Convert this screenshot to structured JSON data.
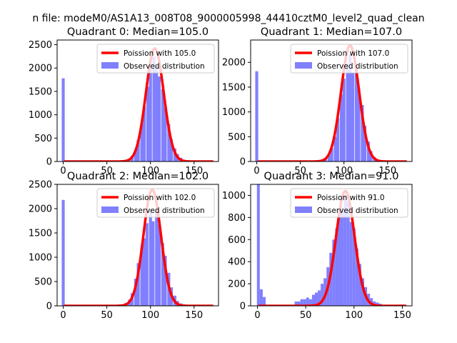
{
  "figure": {
    "suptitle": "n file: modeM0/AS1A13_008T08_9000005998_44410cztM0_level2_quad_clean"
  },
  "style": {
    "bar_color": "#8080ff",
    "line_color": "#ff0000"
  },
  "chart_data": [
    {
      "type": "bar",
      "title": "Quadrant 0: Median=105.0",
      "xlim": [
        -7,
        178
      ],
      "ylim": [
        0,
        2600
      ],
      "xticks": [
        0,
        50,
        100,
        150
      ],
      "yticks": [
        0,
        500,
        1000,
        1500,
        2000,
        2500
      ],
      "legend": {
        "position": "top-right",
        "line_label": "Poission with 105.0",
        "bar_label": "Observed distribution"
      },
      "poisson_mean": 105,
      "poisson_peak": 2420,
      "bin_width": 3.4,
      "bins": [
        {
          "x": 0,
          "y": 1780
        },
        {
          "x": 75,
          "y": 50
        },
        {
          "x": 79,
          "y": 120
        },
        {
          "x": 83,
          "y": 230
        },
        {
          "x": 86,
          "y": 460
        },
        {
          "x": 90,
          "y": 800
        },
        {
          "x": 93,
          "y": 1180
        },
        {
          "x": 97,
          "y": 1600
        },
        {
          "x": 100,
          "y": 1980
        },
        {
          "x": 104,
          "y": 2250
        },
        {
          "x": 107,
          "y": 2050
        },
        {
          "x": 110,
          "y": 1820
        },
        {
          "x": 114,
          "y": 1550
        },
        {
          "x": 117,
          "y": 1150
        },
        {
          "x": 121,
          "y": 800
        },
        {
          "x": 124,
          "y": 480
        },
        {
          "x": 128,
          "y": 280
        },
        {
          "x": 131,
          "y": 160
        },
        {
          "x": 135,
          "y": 80
        },
        {
          "x": 138,
          "y": 40
        },
        {
          "x": 142,
          "y": 15
        }
      ]
    },
    {
      "type": "bar",
      "title": "Quadrant 1: Median=107.0",
      "xlim": [
        -7,
        178
      ],
      "ylim": [
        0,
        2450
      ],
      "xticks": [
        0,
        50,
        100,
        150
      ],
      "yticks": [
        0,
        500,
        1000,
        1500,
        2000
      ],
      "legend": {
        "position": "top-right",
        "line_label": "Poission with 107.0",
        "bar_label": "Observed distribution"
      },
      "poisson_mean": 107,
      "poisson_peak": 2340,
      "bin_width": 3.4,
      "bins": [
        {
          "x": 0,
          "y": 1820
        },
        {
          "x": 75,
          "y": 30
        },
        {
          "x": 79,
          "y": 60
        },
        {
          "x": 83,
          "y": 130
        },
        {
          "x": 86,
          "y": 270
        },
        {
          "x": 90,
          "y": 500
        },
        {
          "x": 93,
          "y": 880
        },
        {
          "x": 97,
          "y": 1350
        },
        {
          "x": 100,
          "y": 1670
        },
        {
          "x": 104,
          "y": 1960
        },
        {
          "x": 107,
          "y": 2160
        },
        {
          "x": 110,
          "y": 1780
        },
        {
          "x": 114,
          "y": 1820
        },
        {
          "x": 117,
          "y": 1470
        },
        {
          "x": 121,
          "y": 1140
        },
        {
          "x": 124,
          "y": 720
        },
        {
          "x": 128,
          "y": 400
        },
        {
          "x": 131,
          "y": 210
        },
        {
          "x": 135,
          "y": 90
        },
        {
          "x": 138,
          "y": 40
        },
        {
          "x": 142,
          "y": 15
        }
      ]
    },
    {
      "type": "bar",
      "title": "Quadrant 2: Median=102.0",
      "xlim": [
        -7,
        178
      ],
      "ylim": [
        0,
        2500
      ],
      "xticks": [
        0,
        50,
        100,
        150
      ],
      "yticks": [
        0,
        500,
        1000,
        1500,
        2000,
        2500
      ],
      "legend": {
        "position": "top-right",
        "line_label": "Poission with 102.0",
        "bar_label": "Observed distribution"
      },
      "poisson_mean": 102,
      "poisson_peak": 2390,
      "bin_width": 3.4,
      "bins": [
        {
          "x": 0,
          "y": 2180
        },
        {
          "x": 72,
          "y": 60
        },
        {
          "x": 76,
          "y": 130
        },
        {
          "x": 79,
          "y": 260
        },
        {
          "x": 83,
          "y": 560
        },
        {
          "x": 86,
          "y": 880
        },
        {
          "x": 90,
          "y": 1200
        },
        {
          "x": 93,
          "y": 1390
        },
        {
          "x": 96,
          "y": 1700
        },
        {
          "x": 100,
          "y": 2000
        },
        {
          "x": 103,
          "y": 1740
        },
        {
          "x": 107,
          "y": 2000
        },
        {
          "x": 110,
          "y": 1680
        },
        {
          "x": 114,
          "y": 1290
        },
        {
          "x": 117,
          "y": 1030
        },
        {
          "x": 121,
          "y": 680
        },
        {
          "x": 124,
          "y": 380
        },
        {
          "x": 128,
          "y": 210
        },
        {
          "x": 131,
          "y": 100
        },
        {
          "x": 135,
          "y": 50
        },
        {
          "x": 138,
          "y": 20
        }
      ]
    },
    {
      "type": "bar",
      "title": "Quadrant 3: Median=91.0",
      "xlim": [
        -7,
        160
      ],
      "ylim": [
        0,
        1100
      ],
      "xticks": [
        0,
        50,
        100,
        150
      ],
      "yticks": [
        0,
        200,
        400,
        600,
        800,
        1000
      ],
      "legend": {
        "position": "top-right",
        "line_label": "Poission with 91.0",
        "bar_label": "Observed distribution"
      },
      "poisson_mean": 91,
      "poisson_peak": 1040,
      "bin_width": 3.0,
      "bins": [
        {
          "x": 1,
          "y": 1100
        },
        {
          "x": 4,
          "y": 150
        },
        {
          "x": 7,
          "y": 80
        },
        {
          "x": 40,
          "y": 40
        },
        {
          "x": 43,
          "y": 40
        },
        {
          "x": 46,
          "y": 60
        },
        {
          "x": 49,
          "y": 60
        },
        {
          "x": 52,
          "y": 75
        },
        {
          "x": 55,
          "y": 60
        },
        {
          "x": 58,
          "y": 100
        },
        {
          "x": 61,
          "y": 120
        },
        {
          "x": 64,
          "y": 140
        },
        {
          "x": 67,
          "y": 200
        },
        {
          "x": 70,
          "y": 250
        },
        {
          "x": 73,
          "y": 350
        },
        {
          "x": 76,
          "y": 480
        },
        {
          "x": 79,
          "y": 600
        },
        {
          "x": 82,
          "y": 700
        },
        {
          "x": 85,
          "y": 850
        },
        {
          "x": 88,
          "y": 890
        },
        {
          "x": 91,
          "y": 1000
        },
        {
          "x": 94,
          "y": 940
        },
        {
          "x": 97,
          "y": 760
        },
        {
          "x": 100,
          "y": 700
        },
        {
          "x": 103,
          "y": 520
        },
        {
          "x": 106,
          "y": 380
        },
        {
          "x": 109,
          "y": 250
        },
        {
          "x": 112,
          "y": 170
        },
        {
          "x": 115,
          "y": 110
        },
        {
          "x": 118,
          "y": 70
        },
        {
          "x": 121,
          "y": 40
        },
        {
          "x": 124,
          "y": 30
        },
        {
          "x": 127,
          "y": 20
        },
        {
          "x": 130,
          "y": 10
        }
      ]
    }
  ]
}
